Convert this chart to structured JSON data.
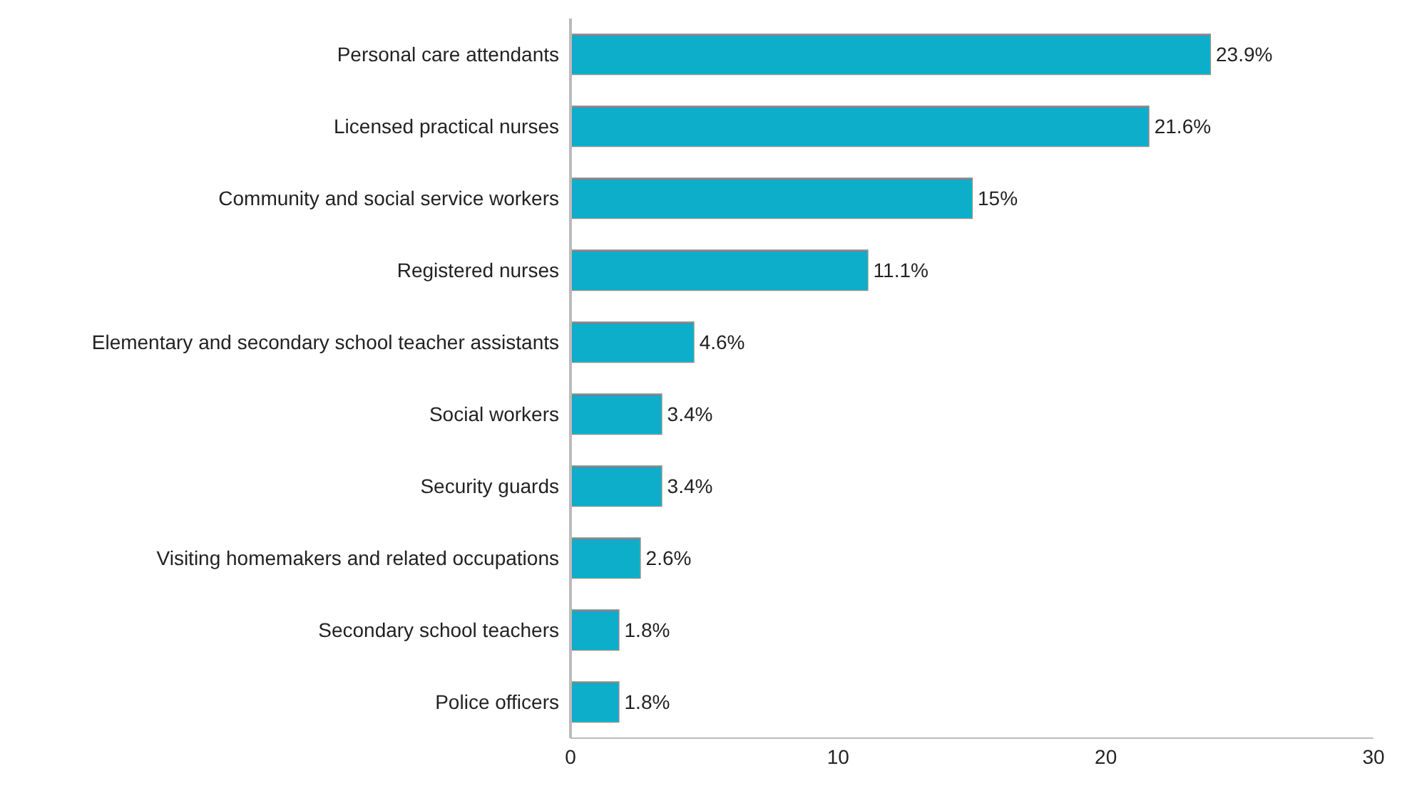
{
  "chart_data": {
    "type": "bar",
    "orientation": "horizontal",
    "categories": [
      "Personal care attendants",
      "Licensed practical nurses",
      "Community and social service workers",
      "Registered nurses",
      "Elementary and secondary school teacher assistants",
      "Social workers",
      "Security guards",
      "Visiting homemakers and related occupations",
      "Secondary school teachers",
      "Police officers"
    ],
    "values": [
      23.9,
      21.6,
      15,
      11.1,
      4.6,
      3.4,
      3.4,
      2.6,
      1.8,
      1.8
    ],
    "value_labels": [
      "23.9%",
      "21.6%",
      "15%",
      "11.1%",
      "4.6%",
      "3.4%",
      "3.4%",
      "2.6%",
      "1.8%",
      "1.8%"
    ],
    "color": "#0caec9",
    "xlim": [
      0,
      30
    ],
    "xticks": [
      0,
      10,
      20,
      30
    ],
    "grid": false
  }
}
